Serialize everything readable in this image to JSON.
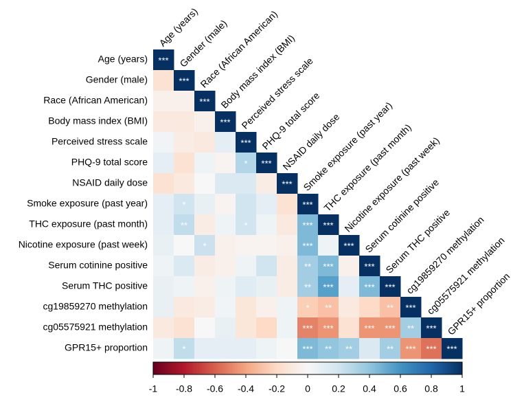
{
  "chart_data": {
    "type": "heatmap",
    "labels": [
      "Age (years)",
      "Gender (male)",
      "Race (African American)",
      "Body mass index (BMI)",
      "Perceived stress scale",
      "PHQ-9 total score",
      "NSAID daily dose",
      "Smoke exposure (past year)",
      "THC exposure (past month)",
      "Nicotine exposure (past week)",
      "Serum cotinine positive",
      "Serum THC positive",
      "cg19859270 methylation",
      "cg05575921 methylation",
      "GPR15+ proportion"
    ],
    "values": [
      [
        1,
        null,
        null,
        null,
        null,
        null,
        null,
        null,
        null,
        null,
        null,
        null,
        null,
        null,
        null
      ],
      [
        -0.15,
        1,
        null,
        null,
        null,
        null,
        null,
        null,
        null,
        null,
        null,
        null,
        null,
        null,
        null
      ],
      [
        -0.05,
        -0.05,
        1,
        null,
        null,
        null,
        null,
        null,
        null,
        null,
        null,
        null,
        null,
        null,
        null
      ],
      [
        -0.1,
        -0.1,
        -0.05,
        1,
        null,
        null,
        null,
        null,
        null,
        null,
        null,
        null,
        null,
        null,
        null
      ],
      [
        0.03,
        -0.08,
        -0.1,
        0.1,
        1,
        null,
        null,
        null,
        null,
        null,
        null,
        null,
        null,
        null,
        null
      ],
      [
        0.1,
        -0.15,
        0.05,
        -0.03,
        0.3,
        1,
        null,
        null,
        null,
        null,
        null,
        null,
        null,
        null,
        null
      ],
      [
        -0.15,
        -0.1,
        0,
        0.15,
        0.15,
        -0.08,
        1,
        null,
        null,
        null,
        null,
        null,
        null,
        null,
        null
      ],
      [
        0.1,
        0.2,
        0.08,
        -0.03,
        0.2,
        0.1,
        -0.15,
        1,
        null,
        null,
        null,
        null,
        null,
        null,
        null
      ],
      [
        0.1,
        0.25,
        -0.08,
        0.05,
        0.2,
        0.05,
        -0.1,
        0.45,
        1,
        null,
        null,
        null,
        null,
        null,
        null
      ],
      [
        0.08,
        0,
        0.22,
        -0.05,
        -0.03,
        -0.03,
        -0.05,
        0.45,
        0.05,
        1,
        null,
        null,
        null,
        null,
        null
      ],
      [
        0.05,
        0.15,
        -0.08,
        -0.05,
        0.05,
        0.2,
        -0.08,
        0.35,
        0.45,
        -0.05,
        1,
        null,
        null,
        null,
        null
      ],
      [
        0.08,
        0.05,
        -0.05,
        0.05,
        0.12,
        0.08,
        -0.08,
        0.35,
        0.55,
        0.1,
        0.45,
        1,
        null,
        null,
        null
      ],
      [
        0.08,
        -0.1,
        -0.08,
        0.03,
        -0.12,
        -0.05,
        0.05,
        -0.25,
        -0.3,
        -0.1,
        -0.2,
        -0.3,
        1,
        null,
        null
      ],
      [
        -0.1,
        -0.15,
        0,
        0.08,
        -0.12,
        -0.2,
        0.05,
        -0.5,
        -0.45,
        -0.15,
        -0.45,
        -0.45,
        0.35,
        1,
        null
      ],
      [
        0.05,
        0.25,
        0.1,
        0.1,
        0.1,
        0.05,
        0,
        0.45,
        0.4,
        0.35,
        0.15,
        0.35,
        -0.45,
        -0.55,
        1
      ]
    ],
    "significance": [
      [
        "***",
        null,
        null,
        null,
        null,
        null,
        null,
        null,
        null,
        null,
        null,
        null,
        null,
        null,
        null
      ],
      [
        null,
        "***",
        null,
        null,
        null,
        null,
        null,
        null,
        null,
        null,
        null,
        null,
        null,
        null,
        null
      ],
      [
        null,
        null,
        "***",
        null,
        null,
        null,
        null,
        null,
        null,
        null,
        null,
        null,
        null,
        null,
        null
      ],
      [
        null,
        null,
        null,
        "***",
        null,
        null,
        null,
        null,
        null,
        null,
        null,
        null,
        null,
        null,
        null
      ],
      [
        null,
        null,
        null,
        null,
        "***",
        null,
        null,
        null,
        null,
        null,
        null,
        null,
        null,
        null,
        null
      ],
      [
        null,
        null,
        null,
        null,
        "*",
        "***",
        null,
        null,
        null,
        null,
        null,
        null,
        null,
        null,
        null
      ],
      [
        null,
        null,
        null,
        null,
        null,
        null,
        "***",
        null,
        null,
        null,
        null,
        null,
        null,
        null,
        null
      ],
      [
        null,
        "*",
        null,
        null,
        null,
        null,
        null,
        "***",
        null,
        null,
        null,
        null,
        null,
        null,
        null
      ],
      [
        null,
        "**",
        null,
        null,
        "*",
        null,
        null,
        "***",
        "***",
        null,
        null,
        null,
        null,
        null,
        null
      ],
      [
        null,
        null,
        "*",
        null,
        null,
        null,
        null,
        "***",
        null,
        "***",
        null,
        null,
        null,
        null,
        null
      ],
      [
        null,
        null,
        null,
        null,
        null,
        null,
        null,
        "**",
        "***",
        null,
        "***",
        null,
        null,
        null,
        null
      ],
      [
        null,
        null,
        null,
        null,
        null,
        null,
        null,
        "**",
        "***",
        null,
        "***",
        "***",
        null,
        null,
        null
      ],
      [
        null,
        null,
        null,
        null,
        null,
        null,
        null,
        "*",
        "**",
        null,
        null,
        "**",
        "***",
        null,
        null
      ],
      [
        null,
        null,
        null,
        null,
        null,
        null,
        null,
        "***",
        "***",
        null,
        "***",
        "***",
        "**",
        "***",
        null
      ],
      [
        null,
        "*",
        null,
        null,
        null,
        null,
        null,
        "***",
        "**",
        "**",
        null,
        "**",
        "***",
        "***",
        "***"
      ]
    ],
    "colormap": [
      "#67001f",
      "#b2182b",
      "#d6604d",
      "#f4a582",
      "#fddbc7",
      "#f7f7f7",
      "#d1e5f0",
      "#92c5de",
      "#4393c3",
      "#2166ac",
      "#053061"
    ],
    "clim": [
      -1,
      1
    ],
    "cticks": [
      -1,
      -0.8,
      -0.6,
      -0.4,
      -0.2,
      0,
      0.2,
      0.4,
      0.6,
      0.8,
      1
    ]
  }
}
